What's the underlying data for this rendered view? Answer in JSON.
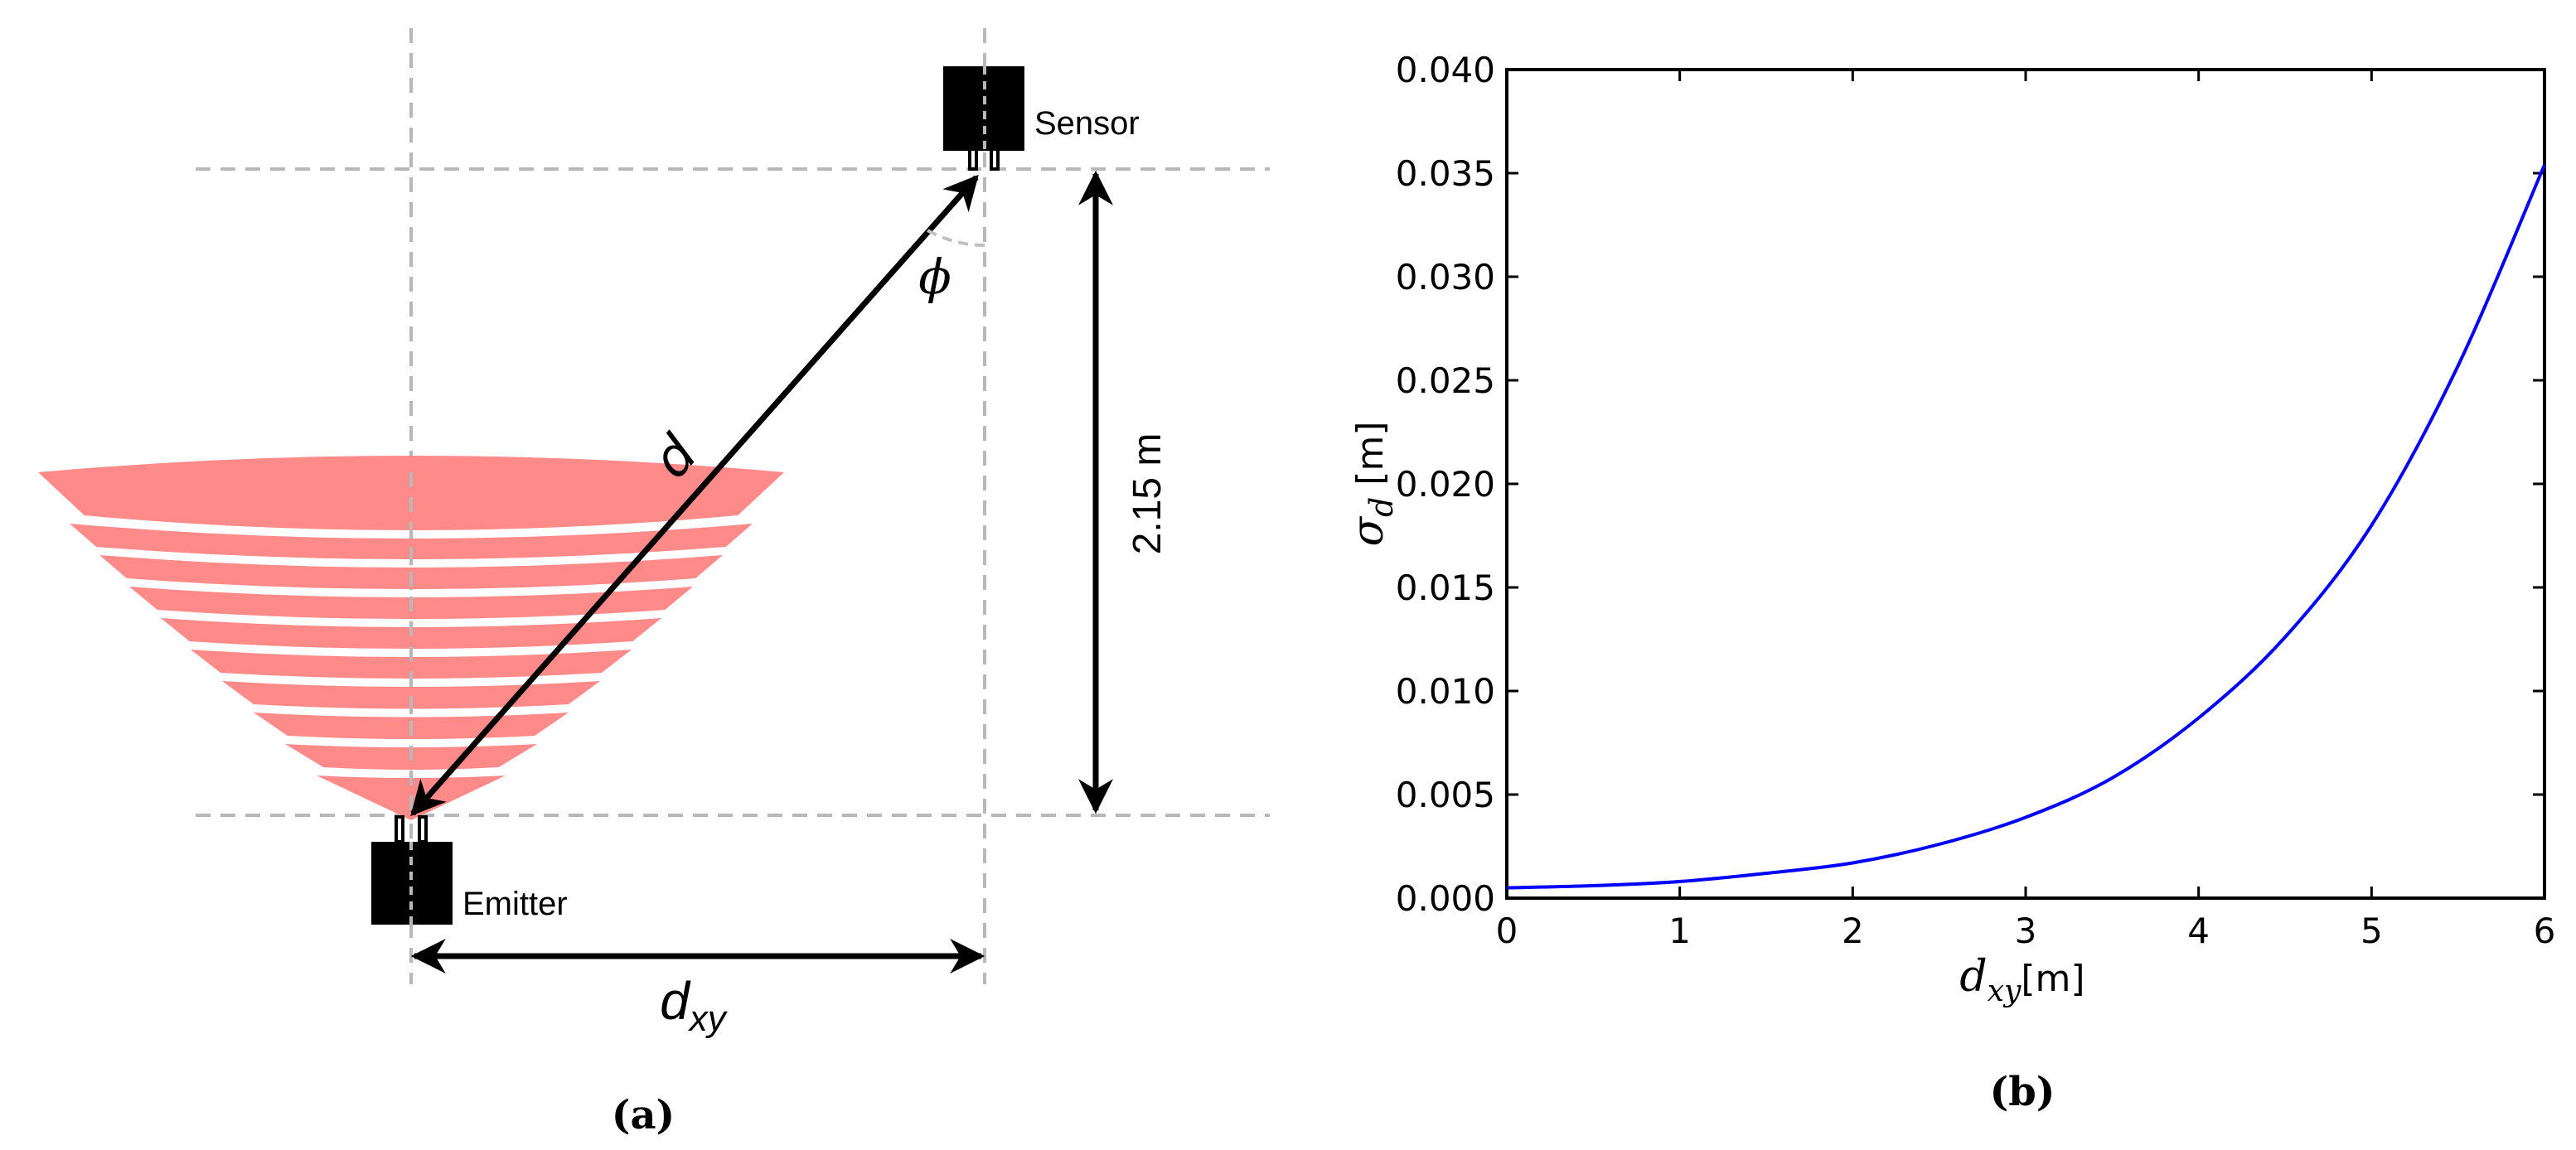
{
  "panel_a": {
    "sensor_label": "Sensor",
    "emitter_label": "Emitter",
    "d_label": "d",
    "phi_label": "ϕ",
    "height_label": "2.15 m",
    "dxy_label_main": "d",
    "dxy_label_sub": "xy",
    "caption": "(a)"
  },
  "panel_b": {
    "caption": "(b)",
    "ylabel_main": "σ",
    "ylabel_sub": "d",
    "ylabel_unit": " [m]",
    "xlabel_main": "d",
    "xlabel_sub": "xy",
    "xlabel_unit": "[m]"
  },
  "chart_data": {
    "type": "line",
    "xlabel": "dxy[m]",
    "ylabel": "σd [m]",
    "xlim": [
      0,
      6
    ],
    "ylim": [
      0,
      0.04
    ],
    "xticks": [
      "0",
      "1",
      "2",
      "3",
      "4",
      "5",
      "6"
    ],
    "yticks": [
      "0.000",
      "0.005",
      "0.010",
      "0.015",
      "0.020",
      "0.025",
      "0.030",
      "0.035",
      "0.040"
    ],
    "line_color": "#0000ff",
    "grid": false,
    "x": [
      0,
      0.5,
      1,
      1.5,
      2,
      2.5,
      3,
      3.5,
      4,
      4.5,
      5,
      5.5,
      6
    ],
    "y": [
      0.0005,
      0.0006,
      0.0008,
      0.0012,
      0.0017,
      0.0026,
      0.0039,
      0.0058,
      0.0087,
      0.0126,
      0.018,
      0.0257,
      0.0354
    ]
  }
}
